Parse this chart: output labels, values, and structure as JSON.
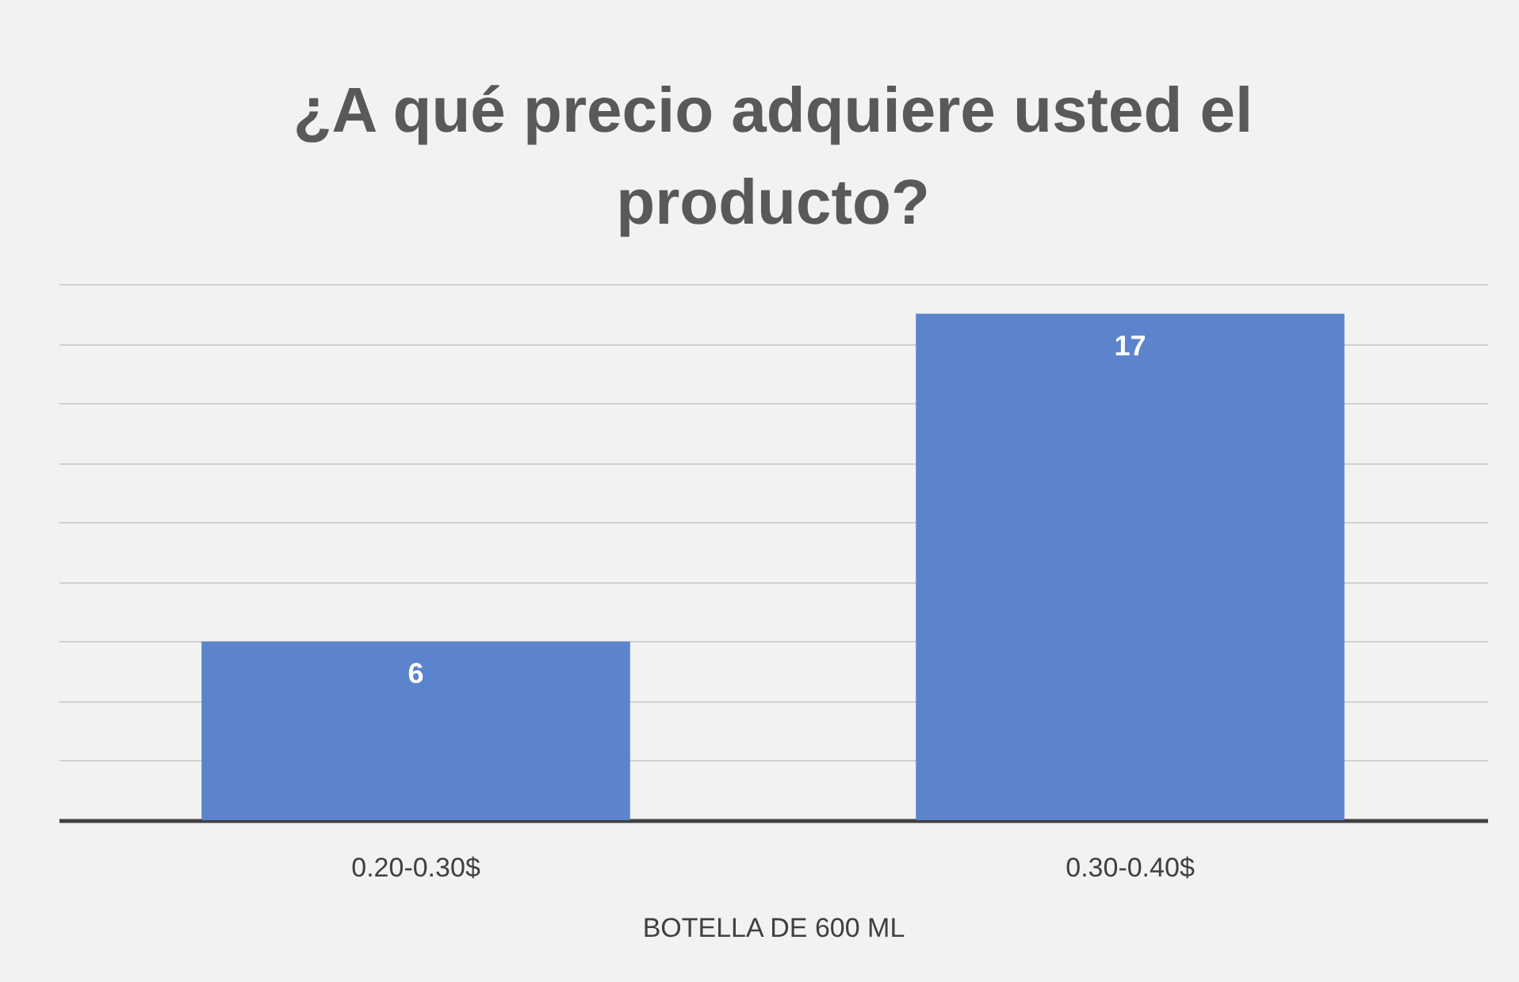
{
  "chart_data": {
    "type": "bar",
    "title": "¿A qué precio adquiere usted el producto?",
    "xlabel": "BOTELLA DE 600 ML",
    "categories": [
      "0.20-0.30$",
      "0.30-0.40$"
    ],
    "series": [
      {
        "color": "#5b84cc",
        "values": [
          6,
          17
        ]
      }
    ],
    "grid": "y",
    "data_labels": true
  }
}
